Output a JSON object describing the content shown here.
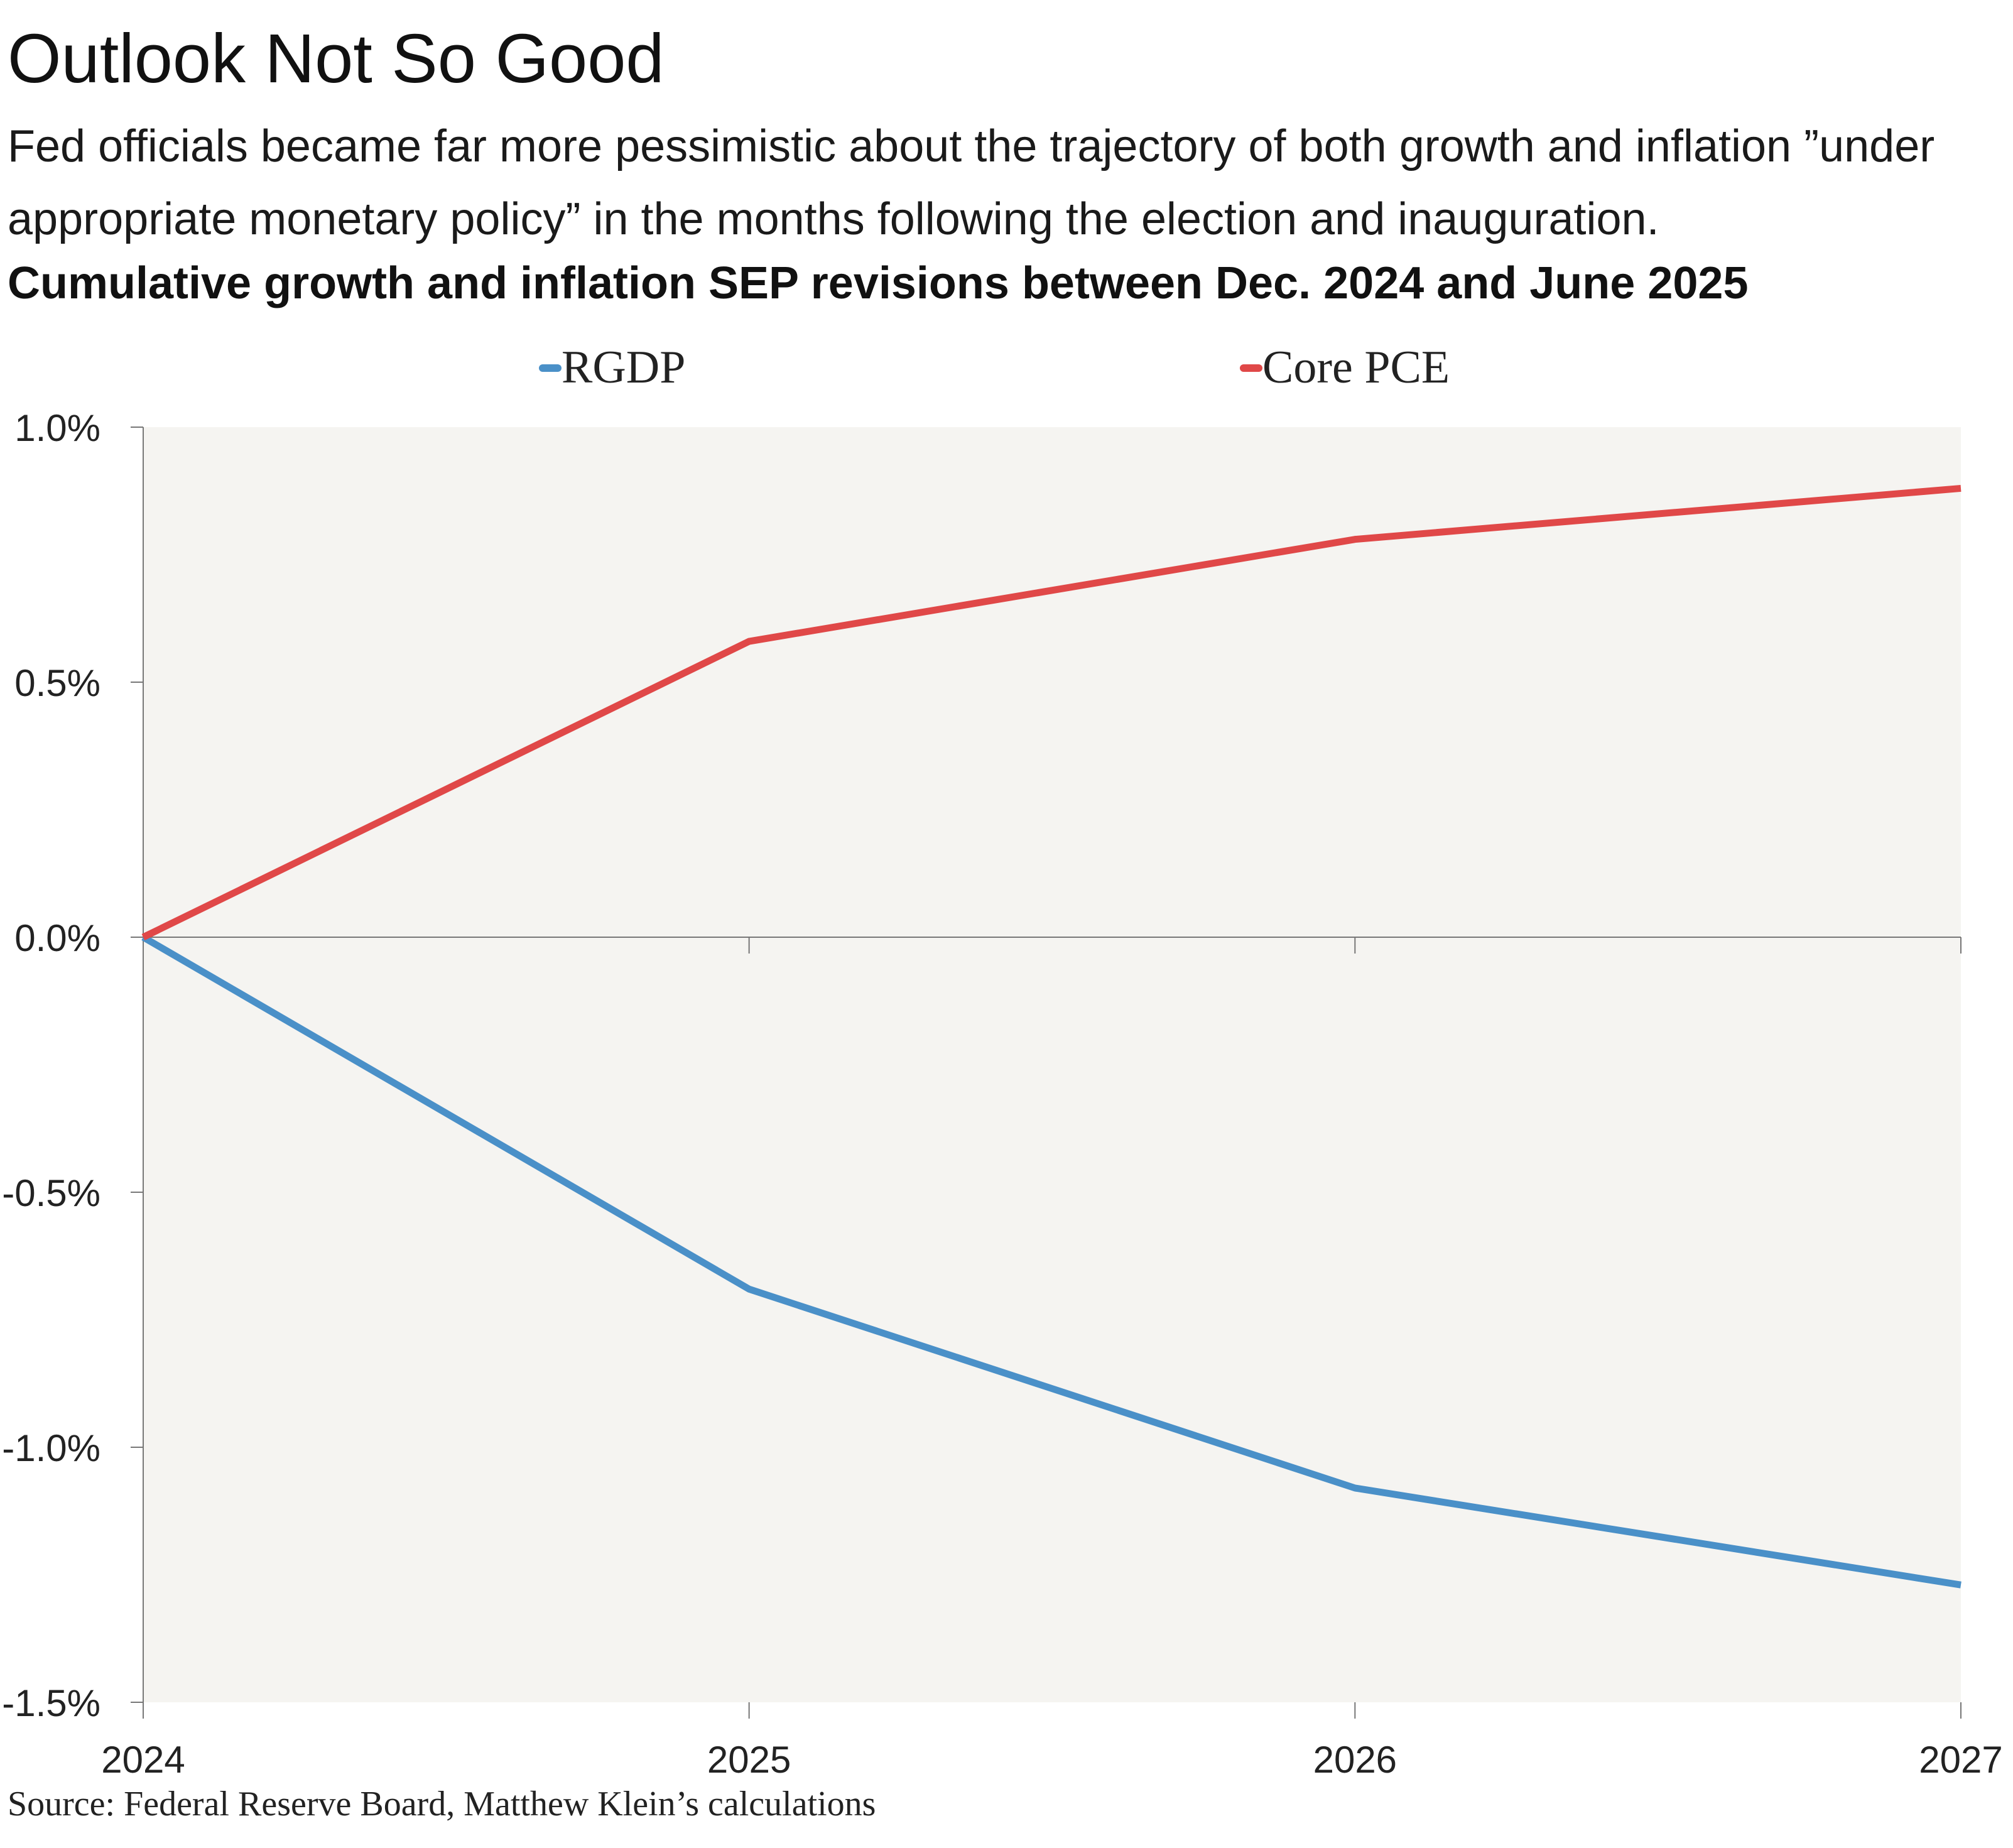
{
  "title": "Outlook Not So Good",
  "subtitle": "Fed officials became far more pessimistic about the trajectory of both growth and inflation ”under appropriate monetary policy” in the months following the election and inauguration.",
  "source": "Source: Federal Reserve Board, Matthew Klein’s calculations",
  "colors": {
    "plot_background": "#f5f4f1",
    "rgdp": "#4a90c8",
    "core_pce": "#e04848",
    "axis": "#777777"
  },
  "chart_data": {
    "type": "line",
    "title": "Cumulative growth and inflation SEP revisions between Dec. 2024 and June 2025",
    "x": [
      "2024",
      "2025",
      "2026",
      "2027"
    ],
    "x_tick_labels": [
      "2024",
      "2025",
      "2026",
      "2027"
    ],
    "y_tick_labels": [
      "1.0%",
      "0.5%",
      "0.0%",
      "-0.5%",
      "-1.0%",
      "-1.5%"
    ],
    "y_ticks": [
      1.0,
      0.5,
      0.0,
      -0.5,
      -1.0,
      -1.5
    ],
    "ylim": [
      -1.5,
      1.0
    ],
    "y_unit": "%",
    "grid": false,
    "legend_placement": "top-center",
    "series": [
      {
        "name": "RGDP",
        "values": [
          0.0,
          -0.69,
          -1.08,
          -1.27
        ]
      },
      {
        "name": "Core PCE",
        "values": [
          0.0,
          0.58,
          0.78,
          0.88
        ]
      }
    ]
  }
}
